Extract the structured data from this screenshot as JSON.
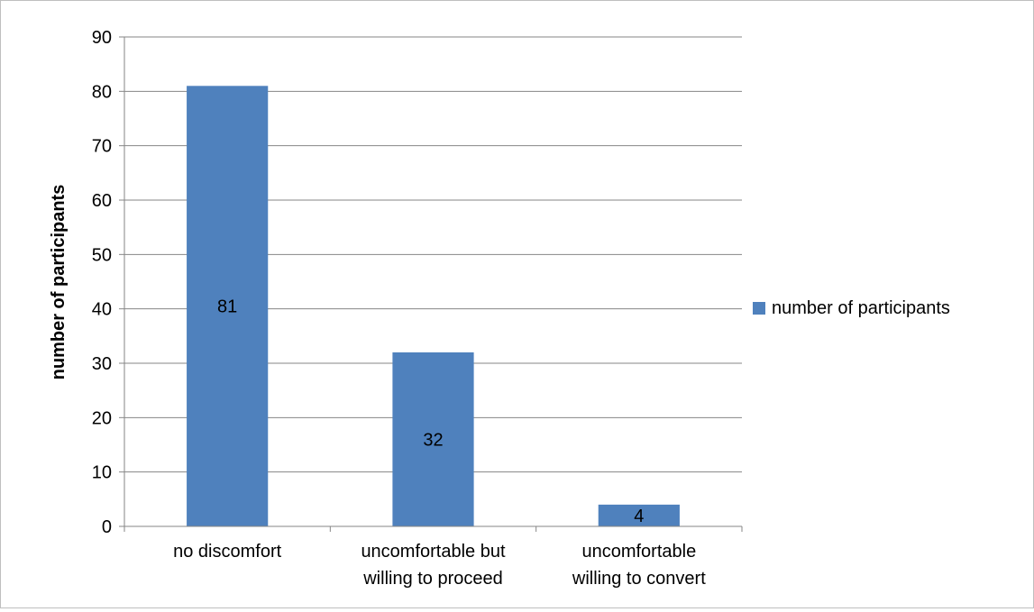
{
  "chart_data": {
    "type": "bar",
    "categories": [
      [
        "no discomfort"
      ],
      [
        "uncomfortable but",
        "willing to proceed"
      ],
      [
        "uncomfortable",
        "willing to convert"
      ]
    ],
    "series": [
      {
        "name": "number of participants",
        "values": [
          81,
          32,
          4
        ],
        "color": "#4f81bd"
      }
    ],
    "data_labels": [
      "81",
      "32",
      "4"
    ],
    "title": "",
    "xlabel": "",
    "ylabel": "number of participants",
    "ylim": [
      0,
      90
    ],
    "yticks": [
      0,
      10,
      20,
      30,
      40,
      50,
      60,
      70,
      80,
      90
    ],
    "grid": true,
    "gridline_color": "#868686",
    "legend": {
      "position": "right",
      "label": "number of participants"
    }
  }
}
